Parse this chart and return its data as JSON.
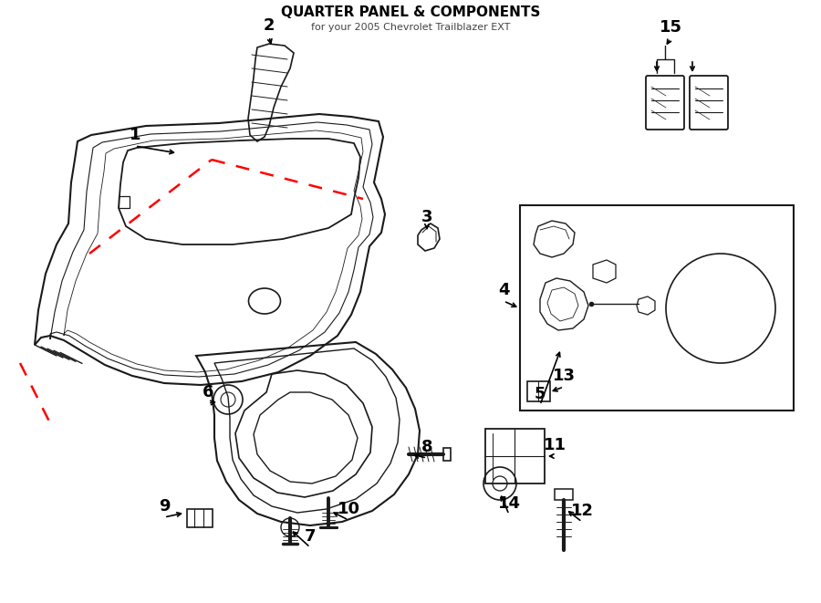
{
  "title": "QUARTER PANEL & COMPONENTS",
  "subtitle": "for your 2005 Chevrolet Trailblazer EXT",
  "bg_color": "#ffffff",
  "line_color": "#1a1a1a",
  "red_dash_color": "#ff0000",
  "fig_w": 9.0,
  "fig_h": 6.61,
  "dpi": 100
}
